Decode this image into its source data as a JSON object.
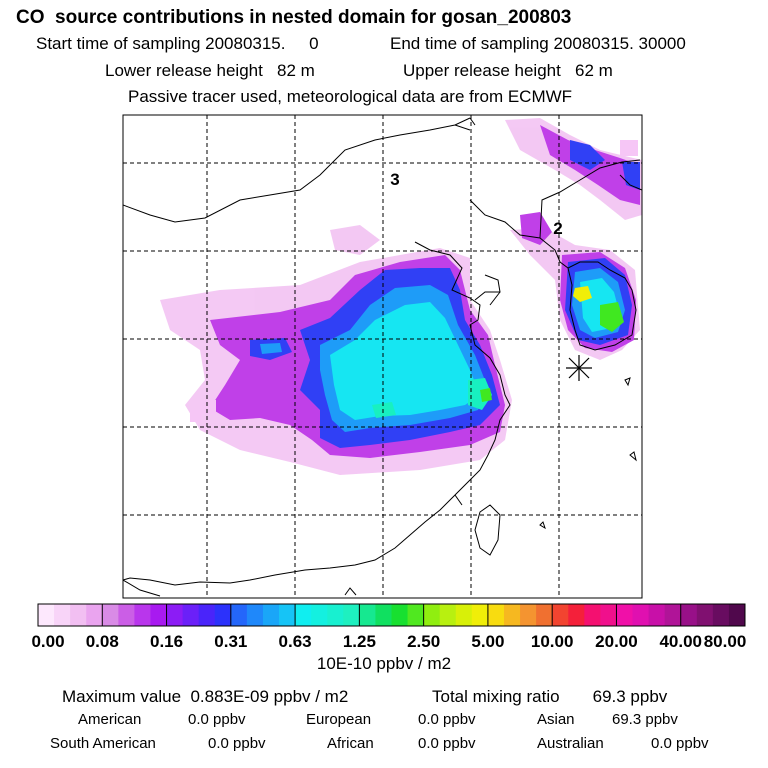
{
  "header": {
    "title": "CO  source contributions in nested domain for gosan_200803",
    "start_label": "Start time of sampling 20080315.     0",
    "end_label": "End time of sampling 20080315. 30000",
    "lower_label": "Lower release height   82 m",
    "upper_label": "Upper release height   62 m",
    "tracer_line": "Passive tracer used, meteorological data are from ECMWF"
  },
  "map": {
    "region_labels": [
      "3",
      "2"
    ],
    "receptor_marker": "asterisk-icon"
  },
  "colorbar": {
    "tick_labels": [
      "0.00",
      "0.08",
      "0.16",
      "0.31",
      "0.63",
      "1.25",
      "2.50",
      "5.00",
      "10.00",
      "20.00",
      "40.00",
      "80.00"
    ],
    "unit": "10E-10 ppbv / m2",
    "colors": [
      "#fde8fd",
      "#f8d4f8",
      "#f2bff2",
      "#eaa4ef",
      "#d98be6",
      "#cb5ee6",
      "#b936ec",
      "#a81af0",
      "#8c1cf5",
      "#6b20f8",
      "#4a24fa",
      "#2c32fb",
      "#2466fa",
      "#1f88fa",
      "#1aa6f8",
      "#16c4f6",
      "#10eef0",
      "#14f0e0",
      "#18f0d0",
      "#1ef0c0",
      "#16e890",
      "#10e060",
      "#18e030",
      "#50e820",
      "#90ee10",
      "#b8f010",
      "#d8f008",
      "#f0ee08",
      "#f8dc10",
      "#f6b820",
      "#f49430",
      "#f07030",
      "#f24430",
      "#f4203a",
      "#f41070",
      "#f0108c",
      "#f010a8",
      "#e010b0",
      "#c810a8",
      "#b01498",
      "#981088",
      "#801070",
      "#680c60",
      "#50084c"
    ]
  },
  "stats": {
    "max_line": "Maximum value  0.883E-09 ppbv / m2",
    "total_line": "Total mixing ratio       69.3 ppbv",
    "regions": [
      {
        "name": "American",
        "value": "0.0 ppbv"
      },
      {
        "name": "European",
        "value": "0.0 ppbv"
      },
      {
        "name": "Asian",
        "value": "69.3 ppbv"
      },
      {
        "name": "South American",
        "value": "0.0 ppbv"
      },
      {
        "name": "African",
        "value": "0.0 ppbv"
      },
      {
        "name": "Australian",
        "value": "0.0 ppbv"
      }
    ]
  }
}
